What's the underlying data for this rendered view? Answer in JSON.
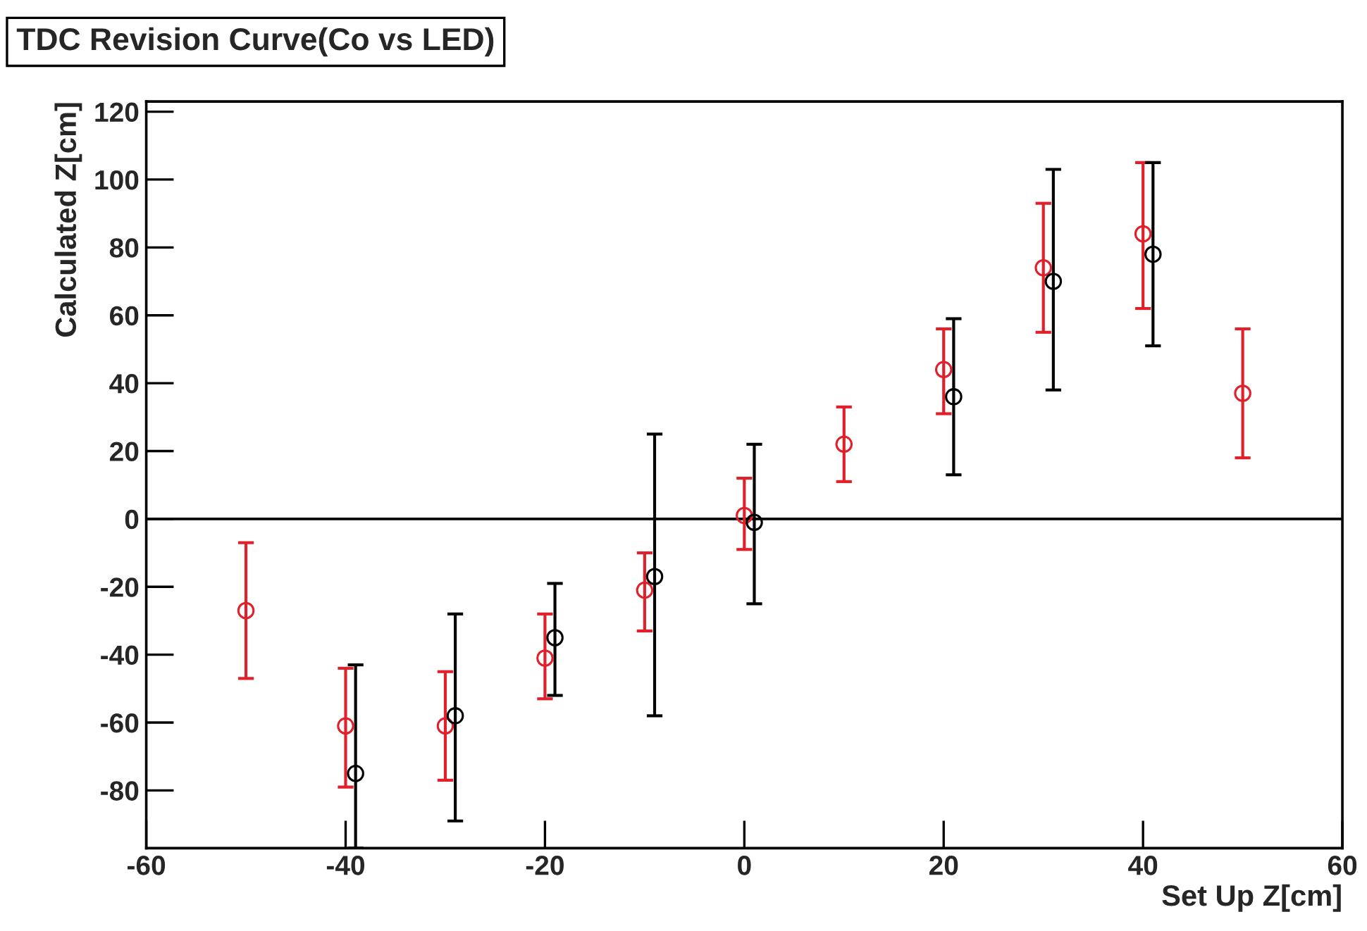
{
  "chart_data": {
    "type": "scatter",
    "title": "TDC Revision Curve(Co vs LED)",
    "xlabel": "Set Up Z[cm]",
    "ylabel": "Calculated Z[cm]",
    "xlim": [
      -60,
      60
    ],
    "xticks": [
      -60,
      -40,
      -20,
      0,
      20,
      40,
      60
    ],
    "ylim": [
      -97,
      123
    ],
    "yticks": [
      {
        "value": -80,
        "label": "-80"
      },
      {
        "value": -60,
        "label": "-60"
      },
      {
        "value": -40,
        "label": "-40"
      },
      {
        "value": -20,
        "label": "-20"
      },
      0,
      20,
      40,
      60,
      80,
      100,
      120
    ],
    "marker": "circle",
    "grid": false,
    "legend": false,
    "ref_lines": [
      {
        "axis": "y",
        "value": 0,
        "color": "#000000",
        "line_style": "solid"
      }
    ],
    "series": [
      {
        "color": "#e0202a",
        "x": [
          -50,
          -40,
          -30,
          -20,
          -10,
          0,
          10,
          20,
          30,
          40,
          50
        ],
        "values": [
          -27,
          -61,
          -61,
          -41,
          -21,
          1,
          22,
          44,
          74,
          84,
          37
        ],
        "errors": [
          [
            -47,
            -7
          ],
          [
            -79,
            -44
          ],
          [
            -77,
            -45
          ],
          [
            -53,
            -28
          ],
          [
            -33,
            -10
          ],
          [
            -9,
            12
          ],
          [
            11,
            33
          ],
          [
            31,
            56
          ],
          [
            55,
            93
          ],
          [
            62,
            105
          ],
          [
            18,
            56
          ]
        ]
      },
      {
        "color": "#000000",
        "x": [
          -39,
          -29,
          -19,
          -9,
          1,
          21,
          31,
          41
        ],
        "values": [
          -75,
          -58,
          -35,
          -17,
          -1,
          36,
          70,
          78
        ],
        "errors": [
          [
            -97,
            -43
          ],
          [
            -89,
            -28
          ],
          [
            -52,
            -19
          ],
          [
            -58,
            25
          ],
          [
            -25,
            22
          ],
          [
            13,
            59
          ],
          [
            38,
            103
          ],
          [
            51,
            105
          ]
        ]
      }
    ]
  }
}
